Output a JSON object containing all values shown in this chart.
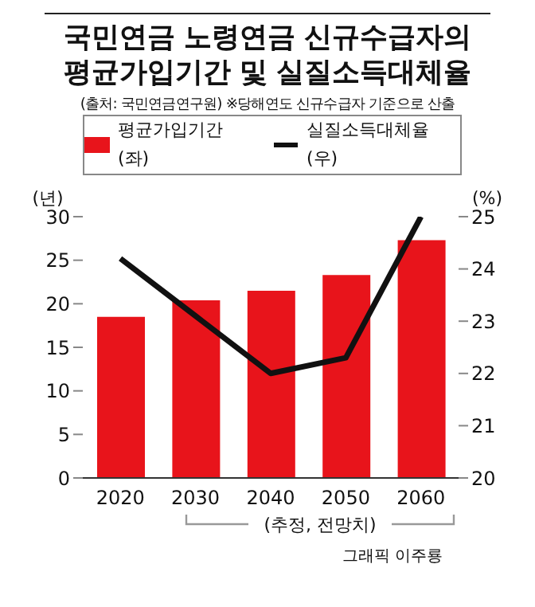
{
  "chart_data": {
    "type": "bar",
    "title": "국민연금 노령연금 신규수급자의\n평균가입기간 및 실질소득대체율",
    "subtitle": "(출처: 국민연금연구원) ※당해연도 신규수급자 기준으로 산출",
    "ylabel": "(년)",
    "y2label": "(%)",
    "categories": [
      "2020",
      "2030",
      "2040",
      "2050",
      "2060"
    ],
    "series": [
      {
        "name": "평균가입기간(좌)",
        "color": "#e8141b",
        "values": [
          18.5,
          20.4,
          21.5,
          23.3,
          27.3
        ]
      },
      {
        "name": "실질소득대체율(우)",
        "type": "line",
        "axis": "y2",
        "color": "#111111",
        "values": [
          24.2,
          23.1,
          22.0,
          22.3,
          25.0
        ]
      }
    ],
    "ylim": [
      0,
      30
    ],
    "yticks": [
      0,
      5,
      10,
      15,
      20,
      25,
      30
    ],
    "y2lim": [
      20,
      25
    ],
    "y2ticks": [
      20,
      21,
      22,
      23,
      24,
      25
    ],
    "legend": "top",
    "grid": false,
    "marker": "none",
    "annotations": [
      "(추정, 전망치)",
      "그래픽 이주룡"
    ]
  }
}
